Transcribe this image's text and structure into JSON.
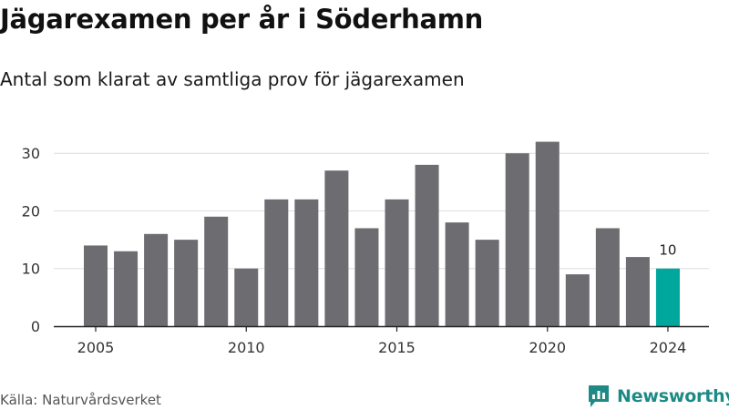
{
  "title": "Jägarexamen per år i Söderhamn",
  "subtitle": "Antal som klarat av samtliga prov för jägarexamen",
  "source": "Källa: Naturvårdsverket",
  "brand": {
    "name": "Newsworthy",
    "icon": "newsworthy-logo-icon",
    "color": "#1e8a86"
  },
  "colors": {
    "bar": "#6d6c71",
    "highlight": "#00a79d",
    "axis": "#222222",
    "grid": "#dddddd"
  },
  "chart_data": {
    "type": "bar",
    "title": "Jägarexamen per år i Söderhamn",
    "subtitle": "Antal som klarat av samtliga prov för jägarexamen",
    "xlabel": "",
    "ylabel": "",
    "x": [
      2005,
      2006,
      2007,
      2008,
      2009,
      2010,
      2011,
      2012,
      2013,
      2014,
      2015,
      2016,
      2017,
      2018,
      2019,
      2020,
      2021,
      2022,
      2023,
      2024
    ],
    "values": [
      14,
      13,
      16,
      15,
      19,
      10,
      22,
      22,
      27,
      17,
      22,
      28,
      18,
      15,
      30,
      32,
      9,
      17,
      12,
      10
    ],
    "highlight": {
      "x": 2024,
      "label": "10"
    },
    "ylim": [
      0,
      32
    ],
    "yticks": [
      0,
      10,
      20,
      30
    ],
    "xticks": [
      2005,
      2010,
      2015,
      2020,
      2024
    ],
    "grid": true,
    "legend": "none"
  }
}
